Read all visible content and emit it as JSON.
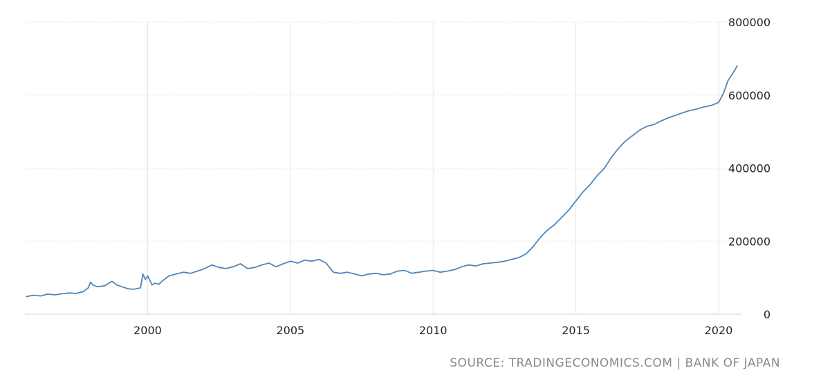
{
  "source_text": "SOURCE: TRADINGECONOMICS.COM | BANK OF JAPAN",
  "colors": {
    "line": "#4f86b8",
    "grid": "#e6e6e6",
    "text": "#222222",
    "source": "#8a8a8a"
  },
  "chart_data": {
    "type": "line",
    "title": "",
    "xlabel": "",
    "ylabel": "",
    "xlim": [
      1995.7,
      2020.8
    ],
    "ylim": [
      0,
      800000
    ],
    "x_ticks": [
      2000,
      2005,
      2010,
      2015,
      2020
    ],
    "y_ticks": [
      0,
      200000,
      400000,
      600000,
      800000
    ],
    "y_axis_position": "right",
    "grid": true,
    "legend": "none",
    "series": [
      {
        "x": [
          1995.75,
          1996.0,
          1996.25,
          1996.5,
          1996.75,
          1997.0,
          1997.25,
          1997.5,
          1997.75,
          1997.92,
          1998.0,
          1998.08,
          1998.25,
          1998.5,
          1998.75,
          1998.92,
          1999.1,
          1999.3,
          1999.5,
          1999.75,
          1999.83,
          1999.92,
          2000.0,
          2000.15,
          2000.25,
          2000.4,
          2000.5,
          2000.75,
          2001.0,
          2001.25,
          2001.5,
          2001.75,
          2002.0,
          2002.25,
          2002.5,
          2002.75,
          2003.0,
          2003.25,
          2003.5,
          2003.75,
          2004.0,
          2004.25,
          2004.5,
          2004.75,
          2005.0,
          2005.25,
          2005.5,
          2005.75,
          2006.0,
          2006.25,
          2006.5,
          2006.75,
          2007.0,
          2007.25,
          2007.5,
          2007.75,
          2008.0,
          2008.25,
          2008.5,
          2008.75,
          2009.0,
          2009.25,
          2009.5,
          2009.75,
          2010.0,
          2010.25,
          2010.5,
          2010.75,
          2011.0,
          2011.25,
          2011.5,
          2011.75,
          2012.0,
          2012.25,
          2012.5,
          2012.75,
          2013.0,
          2013.25,
          2013.5,
          2013.75,
          2014.0,
          2014.25,
          2014.5,
          2014.75,
          2015.0,
          2015.25,
          2015.5,
          2015.75,
          2016.0,
          2016.25,
          2016.5,
          2016.75,
          2017.0,
          2017.25,
          2017.5,
          2017.75,
          2018.0,
          2018.25,
          2018.5,
          2018.75,
          2019.0,
          2019.25,
          2019.5,
          2019.75,
          2020.0,
          2020.17,
          2020.33,
          2020.5,
          2020.65
        ],
        "y": [
          48000,
          52000,
          50000,
          55000,
          53000,
          56000,
          58000,
          57000,
          62000,
          72000,
          88000,
          80000,
          75000,
          78000,
          90000,
          80000,
          75000,
          70000,
          68000,
          72000,
          110000,
          95000,
          105000,
          80000,
          85000,
          82000,
          90000,
          105000,
          110000,
          115000,
          112000,
          118000,
          125000,
          135000,
          128000,
          125000,
          130000,
          138000,
          125000,
          128000,
          135000,
          140000,
          130000,
          138000,
          145000,
          140000,
          148000,
          145000,
          150000,
          140000,
          115000,
          112000,
          115000,
          110000,
          105000,
          110000,
          112000,
          108000,
          110000,
          118000,
          120000,
          112000,
          115000,
          118000,
          120000,
          115000,
          118000,
          122000,
          130000,
          135000,
          132000,
          138000,
          140000,
          142000,
          145000,
          150000,
          155000,
          165000,
          185000,
          210000,
          230000,
          245000,
          265000,
          285000,
          310000,
          335000,
          355000,
          380000,
          400000,
          430000,
          455000,
          475000,
          490000,
          505000,
          515000,
          520000,
          530000,
          538000,
          545000,
          552000,
          558000,
          562000,
          568000,
          572000,
          580000,
          605000,
          640000,
          660000,
          680000
        ]
      }
    ]
  }
}
